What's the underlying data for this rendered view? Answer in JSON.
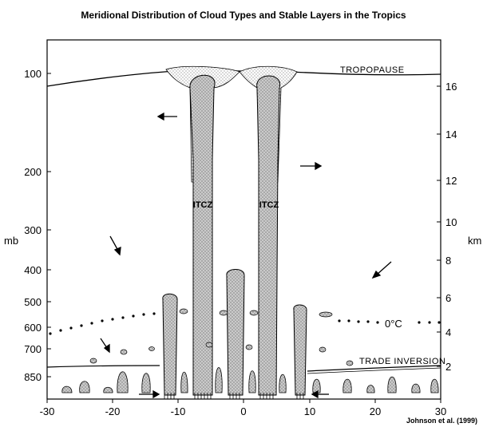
{
  "title": "Meridional Distribution of Cloud Types and Stable Layers in the Tropics",
  "credit": "Johnson et al. (1999)",
  "axes": {
    "left_label": "mb",
    "right_label": "km",
    "x_ticks": [
      "-30",
      "-20",
      "-10",
      "0",
      "10",
      "20",
      "30"
    ],
    "left_ticks": [
      "100",
      "200",
      "300",
      "400",
      "500",
      "600",
      "700",
      "850"
    ],
    "right_ticks": [
      "2",
      "4",
      "6",
      "8",
      "10",
      "12",
      "14",
      "16"
    ]
  },
  "labels": {
    "tropopause": "TROPOPAUSE",
    "freezing": "0°C",
    "trade_inversion": "TRADE INVERSION",
    "itcz_left": "ITCZ",
    "itcz_right": "ITCZ"
  },
  "colors": {
    "cloud_fill": "#b8b8b8",
    "outline": "#000000"
  }
}
